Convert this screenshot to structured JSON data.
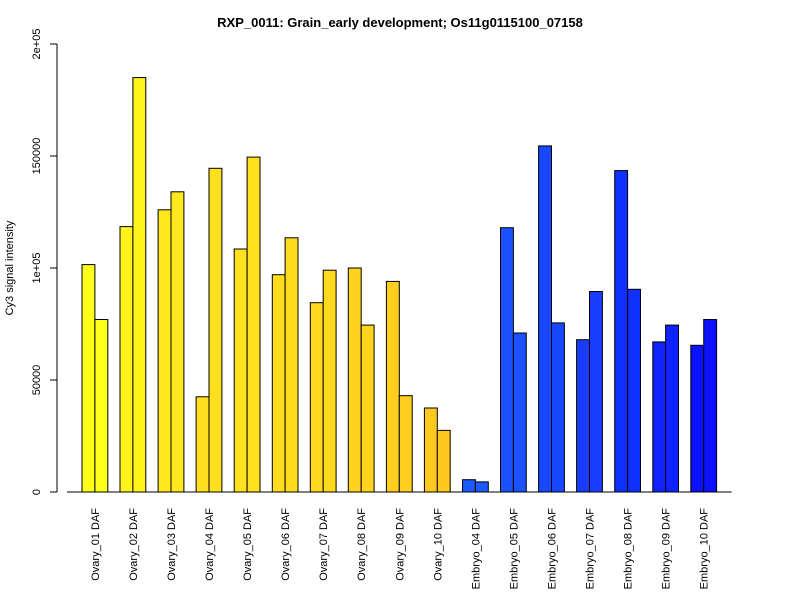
{
  "chart_data": {
    "type": "bar",
    "title": "RXP_0011: Grain_early development; Os11g0115100_07158",
    "xlabel": "",
    "ylabel": "Cy3 signal intensity",
    "ylim": [
      0,
      200000
    ],
    "yticks": [
      {
        "value": 0,
        "label": "0"
      },
      {
        "value": 50000,
        "label": "50000"
      },
      {
        "value": 100000,
        "label": "1e+05"
      },
      {
        "value": 150000,
        "label": "150000"
      },
      {
        "value": 200000,
        "label": "2e+05"
      }
    ],
    "grid": false,
    "legend": "none",
    "categories": [
      "Ovary_01 DAF",
      "Ovary_02 DAF",
      "Ovary_03 DAF",
      "Ovary_04 DAF",
      "Ovary_05 DAF",
      "Ovary_06 DAF",
      "Ovary_07 DAF",
      "Ovary_08 DAF",
      "Ovary_09 DAF",
      "Ovary_10 DAF",
      "Embryo_04 DAF",
      "Embryo_05 DAF",
      "Embryo_06 DAF",
      "Embryo_07 DAF",
      "Embryo_08 DAF",
      "Embryo_09 DAF",
      "Embryo_10 DAF"
    ],
    "series": [
      {
        "values": [
          101500,
          118500,
          126000,
          42500,
          108500,
          97000,
          84500,
          100000,
          94000,
          37500,
          5500,
          118000,
          154500,
          68000,
          143500,
          67000,
          65500
        ]
      },
      {
        "values": [
          77000,
          185000,
          134000,
          144500,
          149500,
          113500,
          99000,
          74500,
          43000,
          27500,
          4500,
          71000,
          75500,
          89500,
          90500,
          74500,
          77000
        ]
      }
    ],
    "colors": [
      "#ffff1a",
      "#fff31c",
      "#ffe81e",
      "#ffe01e",
      "#ffe11e",
      "#ffdc1e",
      "#ffd91e",
      "#ffd31e",
      "#ffce1e",
      "#ffc81e",
      "#1a5aff",
      "#1a52ff",
      "#1748ff",
      "#1a3cff",
      "#1030ff",
      "#0d23ff",
      "#0a12ff"
    ]
  }
}
